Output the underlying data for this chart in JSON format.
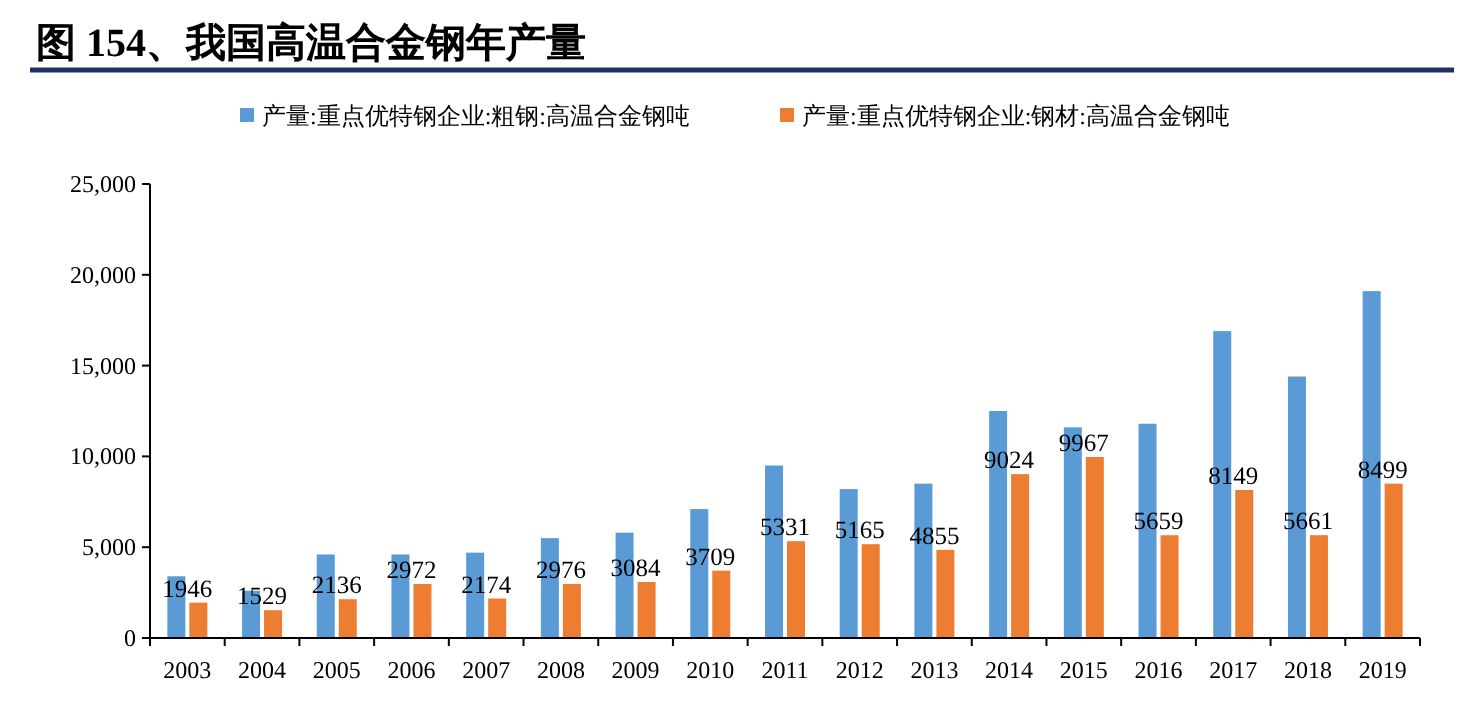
{
  "chart_data": {
    "type": "bar",
    "title": "图 154、我国高温合金钢年产量",
    "categories": [
      "2003",
      "2004",
      "2005",
      "2006",
      "2007",
      "2008",
      "2009",
      "2010",
      "2011",
      "2012",
      "2013",
      "2014",
      "2015",
      "2016",
      "2017",
      "2018",
      "2019"
    ],
    "series": [
      {
        "name": "产量:重点优特钢企业:粗钢:高温合金钢吨",
        "color": "#5b9bd5",
        "values": [
          3400,
          2600,
          4600,
          4600,
          4700,
          5500,
          5800,
          7100,
          9500,
          8200,
          8500,
          12500,
          11600,
          11800,
          16900,
          14400,
          19100
        ]
      },
      {
        "name": "产量:重点优特钢企业:钢材:高温合金钢吨",
        "color": "#ed7d31",
        "values": [
          1946,
          1529,
          2136,
          2972,
          2174,
          2976,
          3084,
          3709,
          5331,
          5165,
          4855,
          9024,
          9967,
          5659,
          8149,
          5661,
          8499
        ],
        "value_labels": [
          "1946",
          "1529",
          "2136",
          "2972",
          "2174",
          "2976",
          "3084",
          "3709",
          "5331",
          "5165",
          "4855",
          "9024",
          "9967",
          "5659",
          "8149",
          "5661",
          "8499"
        ]
      }
    ],
    "ylim": [
      0,
      25000
    ],
    "yticks": [
      0,
      {
        "value": 5000,
        "label": "5,000"
      },
      {
        "value": 10000,
        "label": "10,000"
      },
      {
        "value": 15000,
        "label": "15,000"
      },
      {
        "value": 20000,
        "label": "20,000"
      },
      {
        "value": 25000,
        "label": "25,000"
      }
    ],
    "legend": "top"
  }
}
